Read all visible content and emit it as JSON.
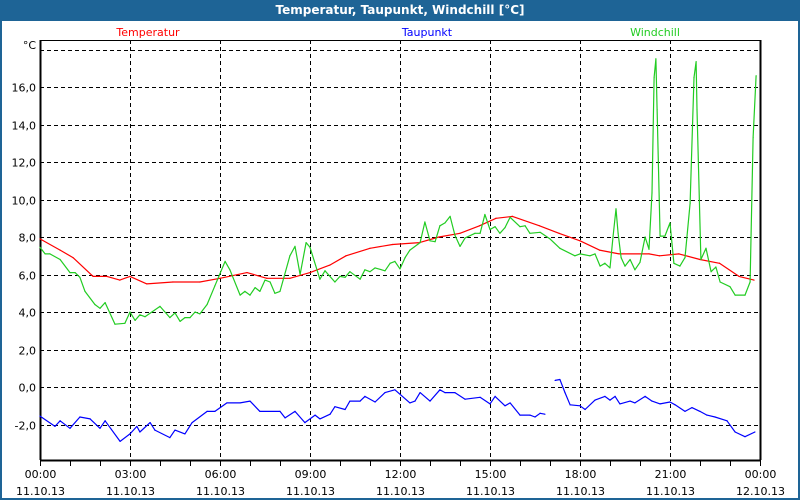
{
  "window": {
    "title": "Temperatur, Taupunkt, Windchill [°C]"
  },
  "chart_data": {
    "type": "line",
    "title": "Temperatur, Taupunkt, Windchill [°C]",
    "ylabel": "°C",
    "xlabel": "",
    "ylim": [
      -3.9,
      18.5
    ],
    "xlim": [
      0,
      24
    ],
    "grid": true,
    "legend_placement": "top",
    "yticks": [
      -2,
      0,
      2,
      4,
      6,
      8,
      10,
      12,
      14,
      16,
      18
    ],
    "ytick_labels": [
      "-2,0",
      "0,0",
      "2,0",
      "4,0",
      "6,0",
      "8,0",
      "10,0",
      "12,0",
      "14,0",
      "16,0",
      ""
    ],
    "xticks": [
      0,
      3,
      6,
      9,
      12,
      15,
      18,
      21,
      24
    ],
    "xtick_labels": [
      {
        "time": "00:00",
        "date": "11.10.13"
      },
      {
        "time": "03:00",
        "date": "11.10.13"
      },
      {
        "time": "06:00",
        "date": "11.10.13"
      },
      {
        "time": "09:00",
        "date": "11.10.13"
      },
      {
        "time": "12:00",
        "date": "11.10.13"
      },
      {
        "time": "15:00",
        "date": "11.10.13"
      },
      {
        "time": "18:00",
        "date": "11.10.13"
      },
      {
        "time": "21:00",
        "date": "11.10.13"
      },
      {
        "time": "00:00",
        "date": "12.10.13"
      }
    ],
    "series": [
      {
        "name": "Temperatur",
        "color": "#ff0000",
        "points": [
          [
            0,
            7.9
          ],
          [
            0.67,
            7.3
          ],
          [
            1.1,
            6.9
          ],
          [
            1.77,
            5.9
          ],
          [
            2.23,
            5.9
          ],
          [
            2.66,
            5.7
          ],
          [
            3.0,
            5.9
          ],
          [
            3.56,
            5.5
          ],
          [
            4.43,
            5.6
          ],
          [
            5.33,
            5.6
          ],
          [
            6.0,
            5.8
          ],
          [
            6.9,
            6.1
          ],
          [
            7.56,
            5.8
          ],
          [
            8.33,
            5.8
          ],
          [
            9.0,
            6.1
          ],
          [
            9.66,
            6.5
          ],
          [
            10.2,
            7.0
          ],
          [
            11.0,
            7.4
          ],
          [
            11.75,
            7.6
          ],
          [
            12.65,
            7.7
          ],
          [
            13.3,
            8.0
          ],
          [
            14.0,
            8.2
          ],
          [
            14.65,
            8.6
          ],
          [
            15.2,
            9.0
          ],
          [
            15.75,
            9.1
          ],
          [
            16.65,
            8.6
          ],
          [
            17.3,
            8.2
          ],
          [
            18.0,
            7.8
          ],
          [
            18.65,
            7.3
          ],
          [
            19.3,
            7.1
          ],
          [
            20.3,
            7.1
          ],
          [
            20.65,
            7.0
          ],
          [
            21.3,
            7.1
          ],
          [
            22.0,
            6.8
          ],
          [
            22.65,
            6.6
          ],
          [
            23.3,
            5.9
          ],
          [
            23.8,
            5.7
          ]
        ]
      },
      {
        "name": "Taupunkt",
        "color": "#0000ff",
        "points": [
          [
            0,
            -1.55
          ],
          [
            0.5,
            -2.1
          ],
          [
            0.67,
            -1.8
          ],
          [
            1.0,
            -2.2
          ],
          [
            1.33,
            -1.6
          ],
          [
            1.67,
            -1.7
          ],
          [
            2.0,
            -2.2
          ],
          [
            2.17,
            -1.8
          ],
          [
            2.67,
            -2.9
          ],
          [
            3.0,
            -2.5
          ],
          [
            3.23,
            -2.1
          ],
          [
            3.33,
            -2.4
          ],
          [
            3.67,
            -1.9
          ],
          [
            3.83,
            -2.3
          ],
          [
            4.33,
            -2.7
          ],
          [
            4.5,
            -2.3
          ],
          [
            4.83,
            -2.5
          ],
          [
            5.07,
            -1.9
          ],
          [
            5.57,
            -1.3
          ],
          [
            5.83,
            -1.3
          ],
          [
            6.23,
            -0.85
          ],
          [
            6.67,
            -0.85
          ],
          [
            7.0,
            -0.75
          ],
          [
            7.33,
            -1.3
          ],
          [
            8.0,
            -1.3
          ],
          [
            8.17,
            -1.65
          ],
          [
            8.5,
            -1.3
          ],
          [
            8.83,
            -1.9
          ],
          [
            9.17,
            -1.5
          ],
          [
            9.33,
            -1.7
          ],
          [
            9.67,
            -1.45
          ],
          [
            9.83,
            -1.05
          ],
          [
            10.17,
            -1.2
          ],
          [
            10.33,
            -0.75
          ],
          [
            10.67,
            -0.75
          ],
          [
            10.83,
            -0.5
          ],
          [
            11.17,
            -0.8
          ],
          [
            11.5,
            -0.3
          ],
          [
            11.83,
            -0.15
          ],
          [
            12.33,
            -0.85
          ],
          [
            12.5,
            -0.75
          ],
          [
            12.67,
            -0.3
          ],
          [
            13.0,
            -0.75
          ],
          [
            13.33,
            -0.15
          ],
          [
            13.5,
            -0.3
          ],
          [
            13.83,
            -0.3
          ],
          [
            14.17,
            -0.65
          ],
          [
            14.67,
            -0.55
          ],
          [
            15.0,
            -0.9
          ],
          [
            15.17,
            -0.5
          ],
          [
            15.5,
            -1.0
          ],
          [
            15.67,
            -0.85
          ],
          [
            16.0,
            -1.5
          ],
          [
            16.33,
            -1.5
          ],
          [
            16.5,
            -1.6
          ],
          [
            16.67,
            -1.4
          ],
          [
            16.83,
            -1.45
          ],
          null,
          [
            17.17,
            0.35
          ],
          [
            17.33,
            0.4
          ],
          [
            17.5,
            -0.3
          ],
          [
            17.67,
            -0.95
          ],
          [
            18.0,
            -1.0
          ],
          [
            18.17,
            -1.2
          ],
          [
            18.5,
            -0.7
          ],
          [
            18.83,
            -0.5
          ],
          [
            19.0,
            -0.7
          ],
          [
            19.17,
            -0.5
          ],
          [
            19.33,
            -0.9
          ],
          [
            19.67,
            -0.75
          ],
          [
            19.83,
            -0.85
          ],
          [
            20.17,
            -0.5
          ],
          [
            20.4,
            -0.75
          ],
          [
            20.67,
            -0.9
          ],
          [
            21.0,
            -0.8
          ],
          [
            21.17,
            -0.95
          ],
          [
            21.5,
            -1.3
          ],
          [
            21.73,
            -1.1
          ],
          [
            22.0,
            -1.3
          ],
          [
            22.23,
            -1.5
          ],
          [
            22.5,
            -1.6
          ],
          [
            22.9,
            -1.8
          ],
          [
            23.17,
            -2.4
          ],
          [
            23.5,
            -2.65
          ],
          [
            23.83,
            -2.4
          ]
        ]
      },
      {
        "name": "Windchill",
        "color": "#22cc22",
        "points": [
          [
            0,
            7.45
          ],
          [
            0.17,
            7.1
          ],
          [
            0.33,
            7.1
          ],
          [
            0.67,
            6.8
          ],
          [
            1.0,
            6.1
          ],
          [
            1.17,
            6.1
          ],
          [
            1.33,
            5.85
          ],
          [
            1.5,
            5.1
          ],
          [
            1.83,
            4.4
          ],
          [
            2.0,
            4.2
          ],
          [
            2.17,
            4.5
          ],
          [
            2.5,
            3.35
          ],
          [
            2.83,
            3.4
          ],
          [
            3.0,
            4.0
          ],
          [
            3.17,
            3.55
          ],
          [
            3.33,
            3.85
          ],
          [
            3.5,
            3.75
          ],
          [
            4.0,
            4.3
          ],
          [
            4.33,
            3.7
          ],
          [
            4.5,
            3.95
          ],
          [
            4.67,
            3.5
          ],
          [
            4.83,
            3.7
          ],
          [
            5.0,
            3.7
          ],
          [
            5.17,
            4.0
          ],
          [
            5.33,
            3.9
          ],
          [
            5.57,
            4.4
          ],
          [
            5.83,
            5.4
          ],
          [
            6.17,
            6.7
          ],
          [
            6.33,
            6.25
          ],
          [
            6.67,
            4.9
          ],
          [
            6.83,
            5.1
          ],
          [
            7.0,
            4.9
          ],
          [
            7.17,
            5.3
          ],
          [
            7.33,
            5.1
          ],
          [
            7.5,
            5.7
          ],
          [
            7.67,
            5.6
          ],
          [
            7.83,
            5.0
          ],
          [
            8.0,
            5.1
          ],
          [
            8.33,
            7.0
          ],
          [
            8.5,
            7.5
          ],
          [
            8.67,
            6.0
          ],
          [
            8.87,
            7.7
          ],
          [
            9.0,
            7.45
          ],
          [
            9.33,
            5.75
          ],
          [
            9.5,
            6.2
          ],
          [
            9.83,
            5.6
          ],
          [
            10.0,
            5.9
          ],
          [
            10.17,
            5.85
          ],
          [
            10.33,
            6.15
          ],
          [
            10.67,
            5.75
          ],
          [
            10.83,
            6.25
          ],
          [
            11.0,
            6.15
          ],
          [
            11.17,
            6.35
          ],
          [
            11.5,
            6.2
          ],
          [
            11.67,
            6.6
          ],
          [
            11.83,
            6.7
          ],
          [
            12.0,
            6.3
          ],
          [
            12.17,
            6.9
          ],
          [
            12.33,
            7.3
          ],
          [
            12.67,
            7.7
          ],
          [
            12.83,
            8.8
          ],
          [
            13.0,
            7.8
          ],
          [
            13.17,
            7.75
          ],
          [
            13.33,
            8.6
          ],
          [
            13.5,
            8.75
          ],
          [
            13.67,
            9.1
          ],
          [
            13.83,
            8.1
          ],
          [
            14.0,
            7.5
          ],
          [
            14.17,
            7.95
          ],
          [
            14.5,
            8.2
          ],
          [
            14.67,
            8.2
          ],
          [
            14.83,
            9.2
          ],
          [
            15.0,
            8.4
          ],
          [
            15.17,
            8.55
          ],
          [
            15.33,
            8.2
          ],
          [
            15.5,
            8.5
          ],
          [
            15.67,
            9.05
          ],
          [
            16.0,
            8.55
          ],
          [
            16.17,
            8.6
          ],
          [
            16.33,
            8.2
          ],
          [
            16.67,
            8.25
          ],
          [
            17.0,
            7.9
          ],
          [
            17.33,
            7.4
          ],
          [
            17.83,
            7.0
          ],
          [
            18.0,
            7.1
          ],
          [
            18.33,
            7.0
          ],
          [
            18.5,
            7.1
          ],
          [
            18.67,
            6.45
          ],
          [
            18.83,
            6.6
          ],
          [
            19.0,
            6.35
          ],
          [
            19.1,
            8.0
          ],
          [
            19.2,
            9.5
          ],
          [
            19.27,
            8.2
          ],
          [
            19.37,
            6.9
          ],
          [
            19.5,
            6.45
          ],
          [
            19.67,
            6.8
          ],
          [
            19.83,
            6.25
          ],
          [
            20.0,
            6.65
          ],
          [
            20.17,
            8.0
          ],
          [
            20.3,
            7.35
          ],
          [
            20.4,
            10.35
          ],
          [
            20.47,
            16.5
          ],
          [
            20.53,
            17.5
          ],
          [
            20.57,
            14.8
          ],
          [
            20.67,
            8.05
          ],
          [
            20.83,
            8.05
          ],
          [
            21.0,
            8.75
          ],
          [
            21.13,
            6.6
          ],
          [
            21.33,
            6.45
          ],
          [
            21.5,
            6.9
          ],
          [
            21.67,
            9.8
          ],
          [
            21.8,
            16.5
          ],
          [
            21.87,
            17.35
          ],
          [
            21.9,
            14.8
          ],
          [
            22.03,
            6.8
          ],
          [
            22.2,
            7.4
          ],
          [
            22.37,
            6.15
          ],
          [
            22.53,
            6.4
          ],
          [
            22.67,
            5.6
          ],
          [
            23.0,
            5.35
          ],
          [
            23.17,
            4.9
          ],
          [
            23.5,
            4.9
          ],
          [
            23.67,
            5.6
          ],
          [
            23.77,
            13.3
          ],
          [
            23.87,
            16.6
          ]
        ]
      }
    ]
  }
}
